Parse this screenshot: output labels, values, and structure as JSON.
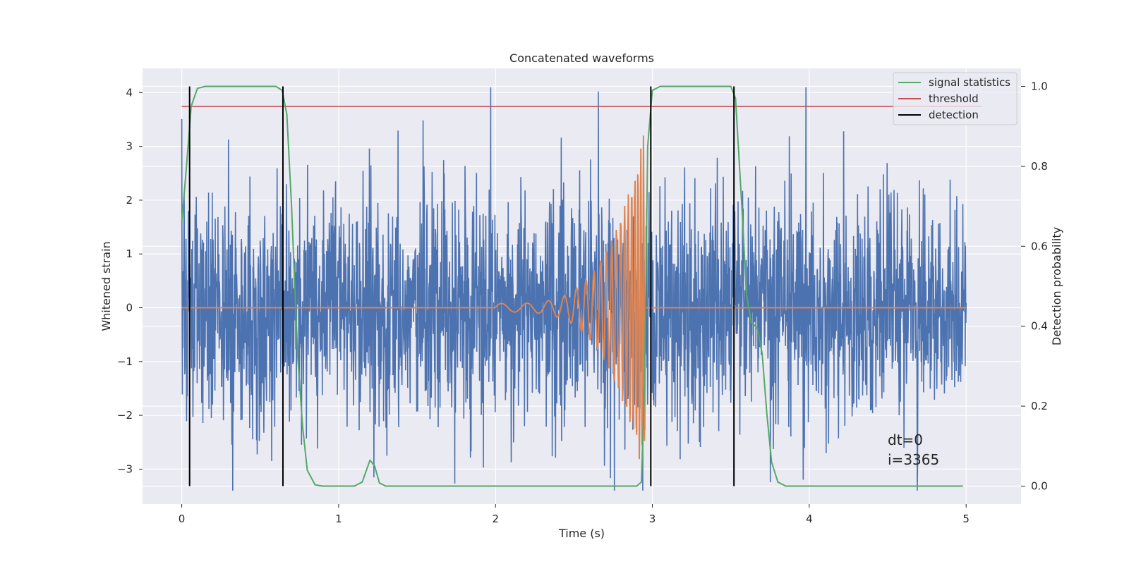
{
  "chart_data": {
    "type": "line",
    "title": "Concatenated waveforms",
    "xlabel": "Time (s)",
    "ylabel": "Whitened strain",
    "ylabel_right": "Detection probability",
    "xlim": [
      -0.25,
      5.35
    ],
    "ylim": [
      -3.65,
      4.45
    ],
    "ylim_right": [
      -0.045,
      1.045
    ],
    "x_ticks": [
      0,
      1,
      2,
      3,
      4,
      5
    ],
    "x_tick_labels": [
      "0",
      "1",
      "2",
      "3",
      "4",
      "5"
    ],
    "y_ticks": [
      -3,
      -2,
      -1,
      0,
      1,
      2,
      3,
      4
    ],
    "y_tick_labels": [
      "−3",
      "−2",
      "−1",
      "0",
      "1",
      "2",
      "3",
      "4"
    ],
    "y_right_ticks": [
      0.0,
      0.2,
      0.4,
      0.6,
      0.8,
      1.0
    ],
    "y_right_tick_labels": [
      "0.0",
      "0.2",
      "0.4",
      "0.6",
      "0.8",
      "1.0"
    ],
    "grid": true,
    "legend_position": "top-right",
    "colors": {
      "background": "#eaeaf2",
      "grid": "#ffffff",
      "noise": "#4c72b0",
      "template": "#dd8452",
      "statistics": "#55a868",
      "threshold": "#c44e52",
      "detection": "#000000"
    },
    "series": [
      {
        "name": "",
        "description": "whitened strain data (noise + injected signal)",
        "x_range": [
          0,
          5
        ],
        "amplitude_typical": 1.0,
        "amplitude_peak_range": [
          -3.4,
          4.1
        ]
      },
      {
        "name": "",
        "description": "injected chirp waveform",
        "chirp": {
          "start": 2.0,
          "end": 2.95,
          "f_start": 6,
          "f_end": 60,
          "a_start": 0.08,
          "a_end": 3.3
        },
        "x_range": [
          0,
          5
        ]
      },
      {
        "name": "signal statistics",
        "axis": "right",
        "points": [
          [
            0,
            0.66
          ],
          [
            0.03,
            0.8
          ],
          [
            0.06,
            0.95
          ],
          [
            0.1,
            0.995
          ],
          [
            0.15,
            1.0
          ],
          [
            0.6,
            1.0
          ],
          [
            0.64,
            0.99
          ],
          [
            0.67,
            0.93
          ],
          [
            0.7,
            0.7
          ],
          [
            0.72,
            0.5
          ],
          [
            0.74,
            0.32
          ],
          [
            0.77,
            0.15
          ],
          [
            0.8,
            0.04
          ],
          [
            0.85,
            0.003
          ],
          [
            0.9,
            0.0
          ],
          [
            1.1,
            0.0
          ],
          [
            1.15,
            0.01
          ],
          [
            1.2,
            0.065
          ],
          [
            1.23,
            0.05
          ],
          [
            1.26,
            0.008
          ],
          [
            1.3,
            0.0
          ],
          [
            2.9,
            0.0
          ],
          [
            2.93,
            0.01
          ],
          [
            2.95,
            0.25
          ],
          [
            2.97,
            0.85
          ],
          [
            3.0,
            0.99
          ],
          [
            3.05,
            1.0
          ],
          [
            3.5,
            1.0
          ],
          [
            3.53,
            0.97
          ],
          [
            3.57,
            0.7
          ],
          [
            3.6,
            0.48
          ],
          [
            3.63,
            0.41
          ],
          [
            3.67,
            0.395
          ],
          [
            3.7,
            0.33
          ],
          [
            3.73,
            0.18
          ],
          [
            3.76,
            0.06
          ],
          [
            3.8,
            0.01
          ],
          [
            3.85,
            0.0
          ],
          [
            4.98,
            0.0
          ]
        ]
      },
      {
        "name": "threshold",
        "axis": "right",
        "value": 0.95,
        "x_range": [
          0,
          5.1
        ]
      },
      {
        "name": "detection",
        "axis": "right",
        "lines": [
          0.05,
          0.645,
          2.99,
          3.52
        ],
        "y_range": [
          0.0,
          1.0
        ]
      }
    ],
    "legend": [
      {
        "label": "signal statistics",
        "color": "#55a868"
      },
      {
        "label": "threshold",
        "color": "#c44e52"
      },
      {
        "label": "detection",
        "color": "#000000"
      }
    ],
    "annotations": [
      "dt=0",
      "i=3365"
    ]
  }
}
